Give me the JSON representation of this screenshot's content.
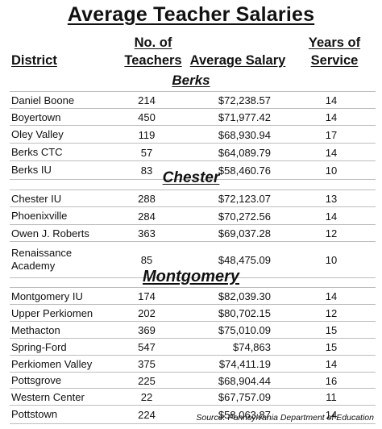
{
  "title": "Average Teacher Salaries",
  "headers": {
    "district": "District",
    "teachers": "No. of\nTeachers",
    "salary": "Average Salary",
    "years": "Years of\nService"
  },
  "sections": [
    {
      "name": "Berks",
      "rows": [
        {
          "district": "Daniel Boone",
          "teachers": "214",
          "salary": "$72,238.57",
          "years": "14"
        },
        {
          "district": "Boyertown",
          "teachers": "450",
          "salary": "$71,977.42",
          "years": "14"
        },
        {
          "district": "Oley Valley",
          "teachers": "119",
          "salary": "$68,930.94",
          "years": "17"
        },
        {
          "district": "Berks CTC",
          "teachers": "57",
          "salary": "$64,089.79",
          "years": "14"
        },
        {
          "district": "Berks IU",
          "teachers": "83",
          "salary": "$58,460.76",
          "years": "10"
        }
      ]
    },
    {
      "name": "Chester",
      "rows": [
        {
          "district": "Chester IU",
          "teachers": "288",
          "salary": "$72,123.07",
          "years": "13"
        },
        {
          "district": "Phoenixville",
          "teachers": "284",
          "salary": "$70,272.56",
          "years": "14"
        },
        {
          "district": "Owen J. Roberts",
          "teachers": "363",
          "salary": "$69,037.28",
          "years": "12"
        },
        {
          "district": "Renaissance\nAcademy",
          "teachers": "85",
          "salary": "$48,475.09",
          "years": "10"
        }
      ]
    },
    {
      "name": "Montgomery",
      "rows": [
        {
          "district": "Montgomery IU",
          "teachers": "174",
          "salary": "$82,039.30",
          "years": "14"
        },
        {
          "district": "Upper Perkiomen",
          "teachers": "202",
          "salary": "$80,702.15",
          "years": "12"
        },
        {
          "district": "Methacton",
          "teachers": "369",
          "salary": "$75,010.09",
          "years": "15"
        },
        {
          "district": "Spring-Ford",
          "teachers": "547",
          "salary": "$74,863",
          "years": "15"
        },
        {
          "district": "Perkiomen Valley",
          "teachers": "375",
          "salary": "$74,411.19",
          "years": "14"
        },
        {
          "district": "Pottsgrove",
          "teachers": "225",
          "salary": "$68,904.44",
          "years": "16"
        },
        {
          "district": "Western Center",
          "teachers": "22",
          "salary": "$67,757.09",
          "years": "11"
        },
        {
          "district": "Pottstown",
          "teachers": "224",
          "salary": "$58,063.87",
          "years": "14"
        }
      ]
    }
  ],
  "source": "Source:  Pennsylvania Department of Education"
}
